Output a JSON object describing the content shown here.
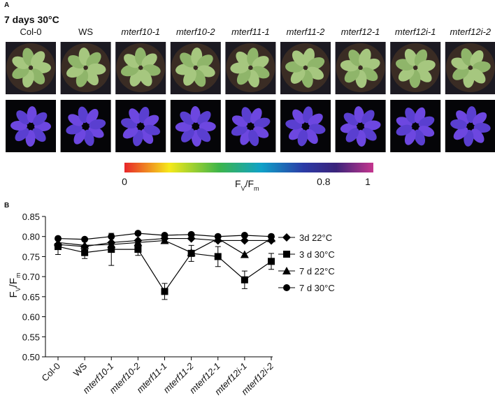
{
  "panel_a": {
    "label": "A",
    "title": "7 days 30°C",
    "genotypes": [
      "Col-0",
      "WS",
      "mterf10-1",
      "mterf10-2",
      "mterf11-1",
      "mterf11-2",
      "mterf12-1",
      "mterf12i-1",
      "mterf12i-2"
    ],
    "italic": [
      false,
      false,
      true,
      true,
      true,
      true,
      true,
      true,
      true
    ],
    "colorbar": {
      "ticks": [
        0,
        0.8,
        1
      ],
      "label": [
        "F",
        "V",
        "/F",
        "m"
      ]
    }
  },
  "chart_data": {
    "type": "line",
    "panel_label": "B",
    "ylabel": [
      "F",
      "V",
      "/F",
      "m"
    ],
    "categories": [
      "Col-0",
      "WS",
      "mterf10-1",
      "mterf10-2",
      "mterf11-1",
      "mterf11-2",
      "mterf12-1",
      "mterf12i-1",
      "mterf12i-2"
    ],
    "ylim": [
      0.5,
      0.85
    ],
    "yticks": [
      {
        "value": 0.5,
        "label": "0.50"
      },
      0.55,
      {
        "value": 0.6,
        "label": "0.60"
      },
      0.65,
      {
        "value": 0.7,
        "label": "0.70"
      },
      0.75,
      {
        "value": 0.8,
        "label": "0.80"
      },
      0.85
    ],
    "series": [
      {
        "name": "3d 22°C",
        "color": "#000000",
        "marker": "diamond",
        "values": [
          0.78,
          0.775,
          0.785,
          0.79,
          0.795,
          0.795,
          0.79,
          0.79,
          0.79
        ]
      },
      {
        "name": "3 d 30°C",
        "color": "#000000",
        "marker": "square",
        "values": [
          0.775,
          0.76,
          0.768,
          0.768,
          0.663,
          0.758,
          0.75,
          0.692,
          0.738
        ],
        "errors": [
          0.02,
          0.015,
          0.04,
          0.015,
          0.02,
          0.02,
          0.025,
          0.022,
          0.02
        ]
      },
      {
        "name": "7 d 22°C",
        "color": "#000000",
        "marker": "triangle",
        "values": [
          0.785,
          0.778,
          0.78,
          0.785,
          0.79,
          0.76,
          0.795,
          0.755,
          0.795
        ]
      },
      {
        "name": "7 d 30°C",
        "color": "#000000",
        "marker": "circle",
        "values": [
          0.795,
          0.793,
          0.8,
          0.808,
          0.803,
          0.805,
          0.8,
          0.803,
          0.8
        ]
      }
    ]
  }
}
